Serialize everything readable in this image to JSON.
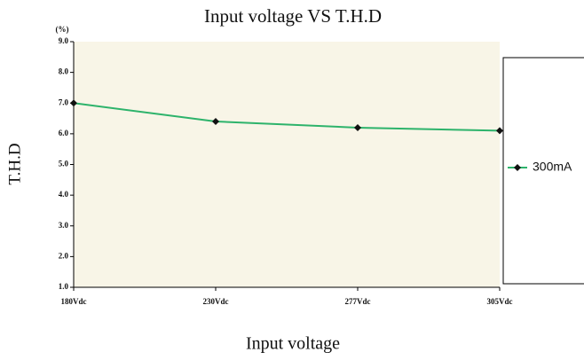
{
  "chart_data": {
    "type": "line",
    "title": "Input voltage VS T.H.D",
    "x_label": "Input voltage",
    "y_label": "T.H.D",
    "y_unit": "(%)",
    "categories": [
      "180Vdc",
      "230Vdc",
      "277Vdc",
      "305Vdc"
    ],
    "series": [
      {
        "name": "300mA",
        "color": "#2db36b",
        "values": [
          7.0,
          6.4,
          6.2,
          6.1
        ]
      }
    ],
    "ylim": [
      1,
      9
    ],
    "yticks": [
      {
        "value": 1,
        "label": "1.0"
      },
      {
        "value": 2,
        "label": "2.0"
      },
      {
        "value": 3,
        "label": "3.0"
      },
      {
        "value": 4,
        "label": "4.0"
      },
      {
        "value": 5,
        "label": "5.0"
      },
      {
        "value": 6,
        "label": "6.0"
      },
      {
        "value": 7,
        "label": "7.0"
      },
      {
        "value": 8,
        "label": "8.0"
      },
      {
        "value": 9,
        "label": "9.0"
      }
    ],
    "legend": "right",
    "background": "#f8f5e7"
  }
}
